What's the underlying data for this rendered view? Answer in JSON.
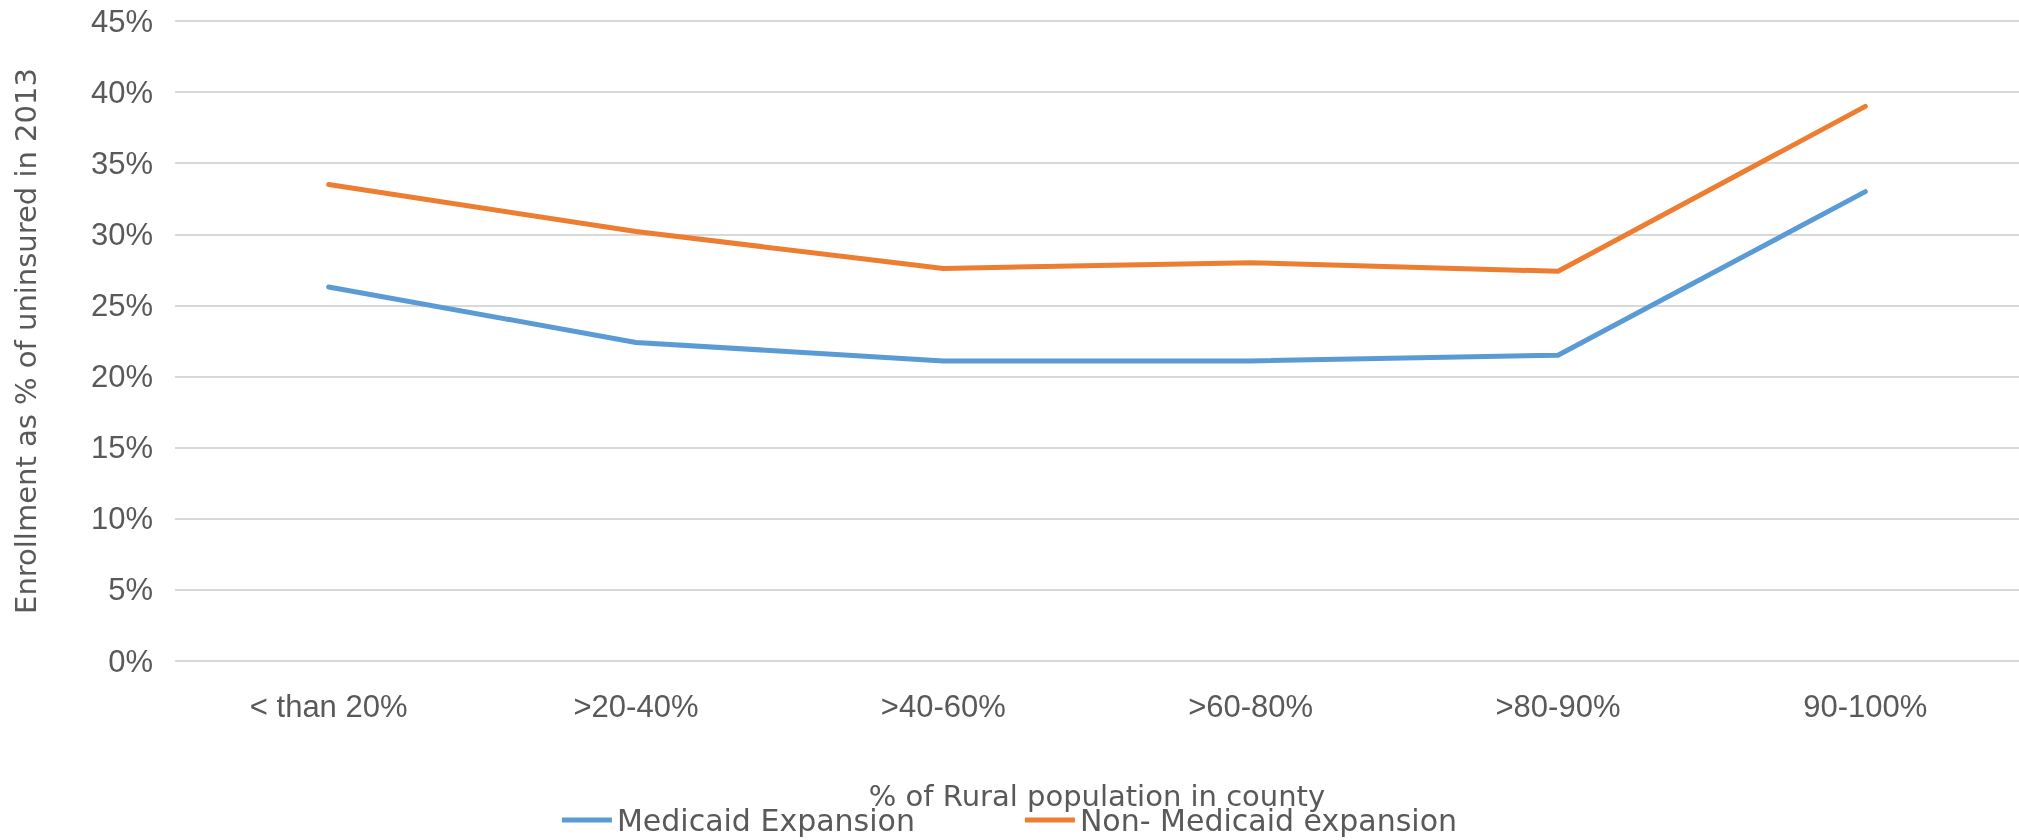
{
  "chart_data": {
    "type": "line",
    "xlabel": "% of Rural population in county",
    "ylabel": "Enrollment as % of uninsured in 2013",
    "categories": [
      "< than 20%",
      ">20-40%",
      ">40-60%",
      ">60-80%",
      ">80-90%",
      "90-100%"
    ],
    "series": [
      {
        "name": "Medicaid Expansion",
        "color": "#5b9bd5",
        "values": [
          26.3,
          22.4,
          21.1,
          21.1,
          21.5,
          33.0
        ]
      },
      {
        "name": "Non- Medicaid expansion",
        "color": "#ed7d31",
        "values": [
          33.5,
          30.2,
          27.6,
          28.0,
          27.4,
          39.0
        ]
      }
    ],
    "ylim": [
      0,
      45
    ],
    "yticks": [
      {
        "value": 0,
        "label": "0%"
      },
      {
        "value": 5,
        "label": "5%"
      },
      {
        "value": 10,
        "label": "10%"
      },
      {
        "value": 15,
        "label": "15%"
      },
      {
        "value": 20,
        "label": "20%"
      },
      {
        "value": 25,
        "label": "25%"
      },
      {
        "value": 30,
        "label": "30%"
      },
      {
        "value": 35,
        "label": "35%"
      },
      {
        "value": 40,
        "label": "40%"
      },
      {
        "value": 45,
        "label": "45%"
      }
    ],
    "grid": "y",
    "legend": "bottom",
    "marker": "none",
    "line_style": "solid"
  }
}
